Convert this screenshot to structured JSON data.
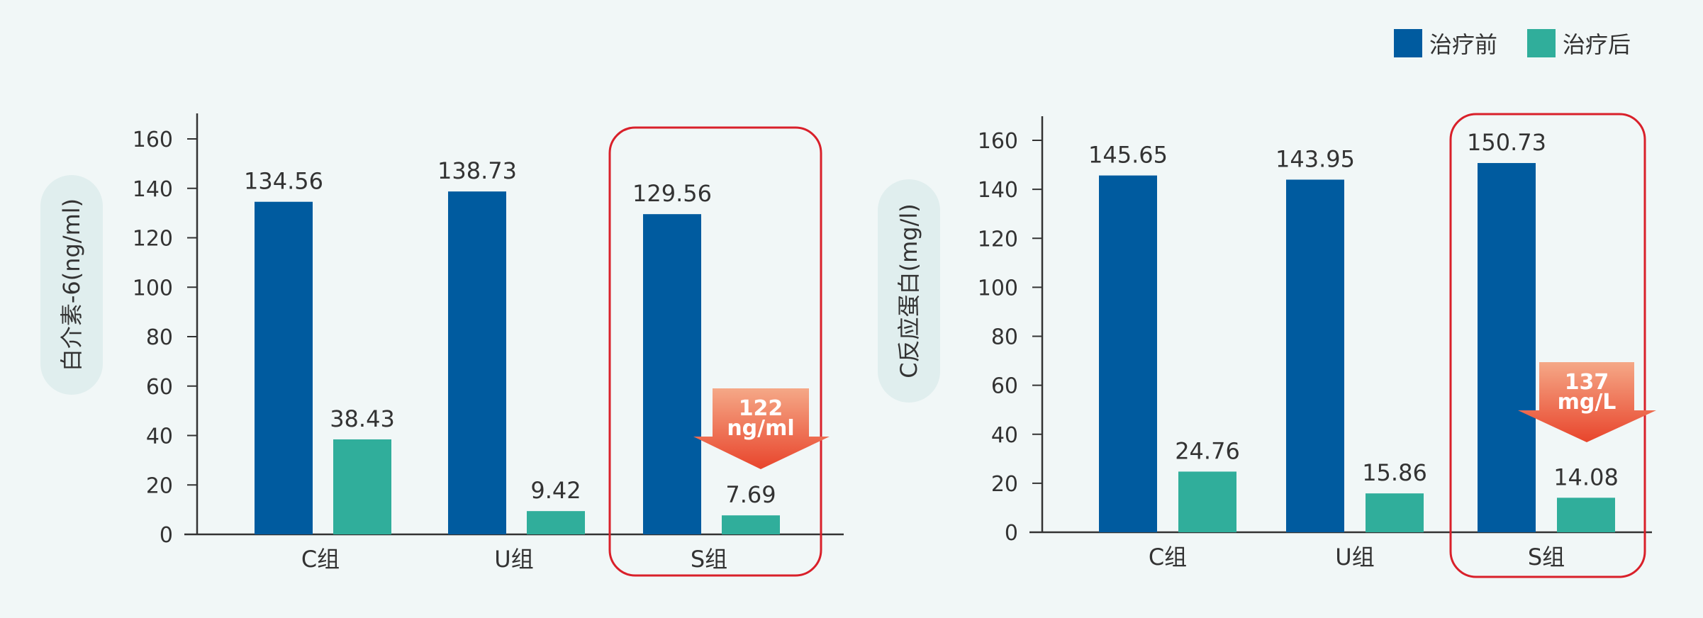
{
  "legend": {
    "before_label": "治疗前",
    "after_label": "治疗后"
  },
  "colors": {
    "before": "#005b9f",
    "after": "#30ae9b",
    "highlight_box": "#d9202a",
    "arrow_top": "#f5a887",
    "arrow_bottom": "#e8452c",
    "pill": "#e0eeee",
    "axis": "#333333"
  },
  "chart_data": [
    {
      "type": "bar",
      "ylabel": "白介素-6(ng/ml)",
      "categories": [
        "C组",
        "U组",
        "S组"
      ],
      "series": [
        {
          "name": "治疗前",
          "values": [
            134.56,
            138.73,
            129.56
          ]
        },
        {
          "name": "治疗后",
          "values": [
            38.43,
            9.42,
            7.69
          ]
        }
      ],
      "data_labels": {
        "before": [
          "134.56",
          "138.73",
          "129.56"
        ],
        "after": [
          "38.43",
          "9.42",
          "7.69"
        ]
      },
      "ylim": [
        0,
        160
      ],
      "yticks": [
        0,
        20,
        40,
        60,
        80,
        100,
        120,
        140,
        160
      ],
      "highlight_category": "S组",
      "annotation": {
        "line1": "122",
        "line2": "ng/ml"
      }
    },
    {
      "type": "bar",
      "ylabel": "C反应蛋白(mg/l)",
      "categories": [
        "C组",
        "U组",
        "S组"
      ],
      "series": [
        {
          "name": "治疗前",
          "values": [
            145.65,
            143.95,
            150.73
          ]
        },
        {
          "name": "治疗后",
          "values": [
            24.76,
            15.86,
            14.08
          ]
        }
      ],
      "data_labels": {
        "before": [
          "145.65",
          "143.95",
          "150.73"
        ],
        "after": [
          "24.76",
          "15.86",
          "14.08"
        ]
      },
      "ylim": [
        0,
        160
      ],
      "yticks": [
        0,
        20,
        40,
        60,
        80,
        100,
        120,
        140,
        160
      ],
      "highlight_category": "S组",
      "annotation": {
        "line1": "137",
        "line2": "mg/L"
      }
    }
  ]
}
